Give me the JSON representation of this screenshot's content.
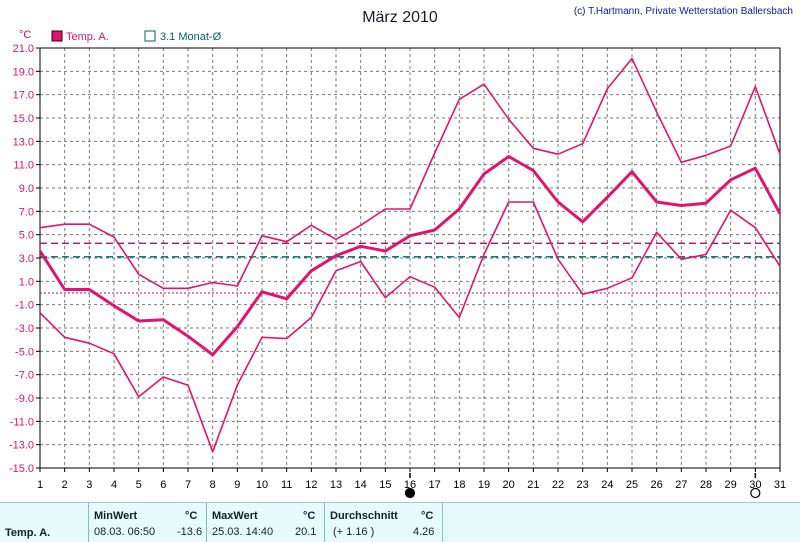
{
  "header": {
    "title": "März 2010",
    "credit": "(c) T.Hartmann, Private Wetterstation Ballersbach",
    "unit": "°C"
  },
  "legend": [
    {
      "label": "Temp. A.",
      "color": "#e0146e",
      "filled": true
    },
    {
      "label": "3.1 Monat-Ø",
      "color": "#006666",
      "filled": false
    }
  ],
  "chart_data": {
    "type": "line",
    "title": "März 2010",
    "ylabel": "°C",
    "ylim": [
      -15,
      21
    ],
    "yticks": [
      "21.0",
      "19.0",
      "17.0",
      "15.0",
      "13.0",
      "11.0",
      "9.0",
      "7.0",
      "5.0",
      "3.0",
      "1.0",
      "-1.0",
      "-3.0",
      "-5.0",
      "-7.0",
      "-9.0",
      "-11.0",
      "-13.0",
      "-15.0"
    ],
    "x": [
      1,
      2,
      3,
      4,
      5,
      6,
      7,
      8,
      9,
      10,
      11,
      12,
      13,
      14,
      15,
      16,
      17,
      18,
      19,
      20,
      21,
      22,
      23,
      24,
      25,
      26,
      27,
      28,
      29,
      30,
      31
    ],
    "grid": true,
    "series": [
      {
        "name": "Temp. A.",
        "role": "max",
        "color": "#e0146e",
        "values": [
          5.6,
          5.9,
          5.9,
          4.8,
          1.6,
          0.4,
          0.4,
          0.9,
          0.6,
          4.9,
          4.4,
          5.8,
          4.6,
          5.8,
          7.2,
          7.2,
          12.0,
          16.6,
          17.9,
          14.9,
          12.4,
          11.9,
          12.8,
          17.5,
          20.1,
          15.5,
          11.2,
          11.8,
          12.6,
          17.7,
          11.9
        ]
      },
      {
        "name": "Temp. A.",
        "role": "mean",
        "color": "#e0146e",
        "values": [
          3.6,
          0.3,
          0.3,
          -1.1,
          -2.4,
          -2.3,
          -3.7,
          -5.3,
          -2.9,
          0.1,
          -0.5,
          1.9,
          3.2,
          4.0,
          3.6,
          4.9,
          5.4,
          7.2,
          10.2,
          11.7,
          10.5,
          7.8,
          6.1,
          8.2,
          10.4,
          7.8,
          7.5,
          7.7,
          9.7,
          10.7,
          6.8
        ]
      },
      {
        "name": "Temp. A.",
        "role": "min",
        "color": "#e0146e",
        "values": [
          -1.7,
          -3.8,
          -4.3,
          -5.2,
          -8.9,
          -7.2,
          -7.9,
          -13.6,
          -7.9,
          -3.8,
          -3.9,
          -2.1,
          1.9,
          2.7,
          -0.4,
          1.4,
          0.5,
          -2.1,
          3.3,
          7.8,
          7.8,
          2.9,
          -0.1,
          0.4,
          1.3,
          5.2,
          2.9,
          3.3,
          7.1,
          5.6,
          2.3
        ]
      }
    ],
    "reference_lines": [
      {
        "name": "3.1 Monat-Ø",
        "value": 3.1,
        "color": "#006666",
        "style": "dashed"
      },
      {
        "name": "Durchschnitt",
        "value": 4.26,
        "color": "#b0145e",
        "style": "dashed"
      },
      {
        "name": "zero",
        "value": 0,
        "color": "#b0145e",
        "style": "dotted"
      }
    ],
    "markers": [
      {
        "day": 16,
        "symbol": "full-moon"
      },
      {
        "day": 30,
        "symbol": "new-moon"
      }
    ]
  },
  "footer": {
    "row_label": "Temp. A.",
    "min_title": "MinWert",
    "min_unit": "°C",
    "min_when": "08.03.  06:50",
    "min_value": "-13.6",
    "max_title": "MaxWert",
    "max_unit": "°C",
    "max_when": "25.03.  14:40",
    "max_value": "20.1",
    "avg_title": "Durchschnitt",
    "avg_unit": "°C",
    "avg_delta": "(+ 1.16 )",
    "avg_value": "4.26"
  }
}
